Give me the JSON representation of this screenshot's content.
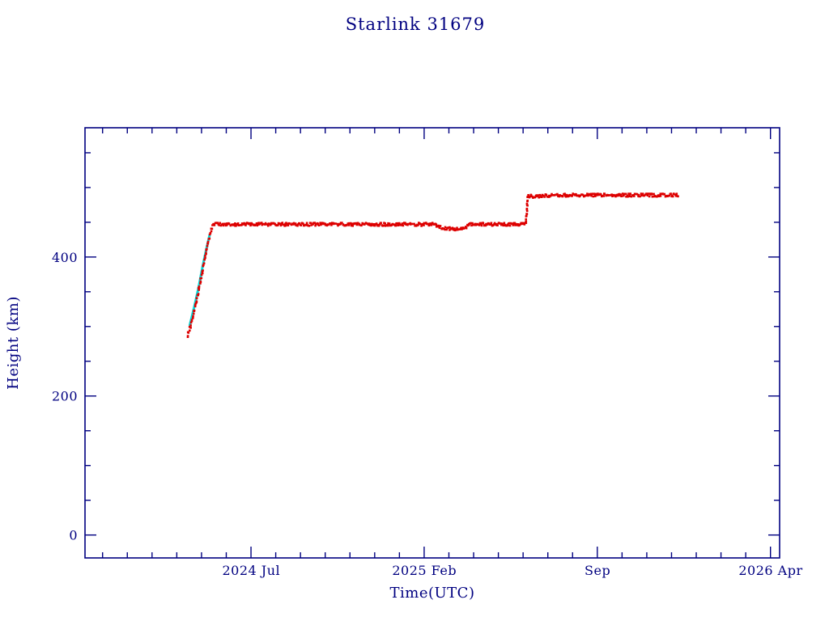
{
  "colors": {
    "axis": "#000080",
    "text": "#000080",
    "background": "#ffffff",
    "series_red": "#dd0000",
    "series_cyan": "#00dddd"
  },
  "chart_data": {
    "type": "scatter",
    "title": "Starlink 31679",
    "xlabel": "Time(UTC)",
    "ylabel": "Height (km)",
    "grid": false,
    "legend": "none",
    "x_axis": {
      "unit": "decimal_year",
      "min": 2023.94,
      "max": 2026.28,
      "major_ticks": [
        {
          "value": 2024.5,
          "label": "2024 Jul"
        },
        {
          "value": 2025.0833,
          "label": "2025 Feb"
        },
        {
          "value": 2025.6667,
          "label": "Sep"
        },
        {
          "value": 2026.25,
          "label": "2026 Apr"
        }
      ],
      "minor_tick_interval_years": 0.0833333
    },
    "y_axis": {
      "unit": "km",
      "min": -33,
      "max": 586,
      "major_ticks": [
        {
          "value": 0,
          "label": "0"
        },
        {
          "value": 200,
          "label": "200"
        },
        {
          "value": 400,
          "label": "400"
        }
      ],
      "minor_tick_interval": 50,
      "major_tick_interval": 200
    },
    "series": [
      {
        "name": "maneuver-track-cyan",
        "type": "line",
        "color": "#00dddd",
        "keypoints": [
          [
            2024.293,
            302
          ],
          [
            2024.308,
            328
          ],
          [
            2024.322,
            355
          ],
          [
            2024.336,
            386
          ],
          [
            2024.349,
            412
          ],
          [
            2024.36,
            432
          ]
        ]
      },
      {
        "name": "height-observations-red",
        "type": "scatter-dense",
        "color": "#dd0000",
        "marker": "dot",
        "max_sample_step_years": 0.0025,
        "max_sample_step_km": 2.5,
        "jitter_km": 2.2,
        "jitter_years": 0.0015,
        "keypoints": [
          [
            2024.285,
            286
          ],
          [
            2024.298,
            305
          ],
          [
            2024.312,
            330
          ],
          [
            2024.326,
            358
          ],
          [
            2024.34,
            390
          ],
          [
            2024.352,
            416
          ],
          [
            2024.362,
            436
          ],
          [
            2024.372,
            447
          ],
          [
            2025.12,
            447
          ],
          [
            2025.145,
            441
          ],
          [
            2025.215,
            440
          ],
          [
            2025.235,
            447
          ],
          [
            2025.425,
            447
          ],
          [
            2025.432,
            488
          ],
          [
            2025.46,
            487
          ],
          [
            2025.52,
            489
          ],
          [
            2025.94,
            489
          ]
        ]
      }
    ]
  }
}
